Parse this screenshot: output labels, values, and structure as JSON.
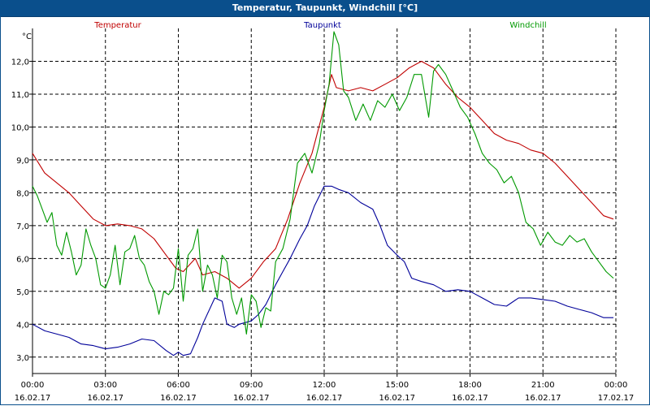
{
  "window": {
    "title": "Temperatur, Taupunkt, Windchill [°C]"
  },
  "chart_data": {
    "type": "line",
    "title": "Temperatur, Taupunkt, Windchill [°C]",
    "ylabel": "°C",
    "xlabel": "",
    "ylim": [
      2.5,
      13.0
    ],
    "xlim": [
      0,
      24
    ],
    "grid": true,
    "y_ticks": [
      "3,0",
      "4,0",
      "5,0",
      "6,0",
      "7,0",
      "8,0",
      "9,0",
      "10,0",
      "11,0",
      "12,0"
    ],
    "x_ticks": [
      {
        "time": "00:00",
        "date": "16.02.17"
      },
      {
        "time": "03:00",
        "date": "16.02.17"
      },
      {
        "time": "06:00",
        "date": "16.02.17"
      },
      {
        "time": "09:00",
        "date": "16.02.17"
      },
      {
        "time": "12:00",
        "date": "16.02.17"
      },
      {
        "time": "15:00",
        "date": "16.02.17"
      },
      {
        "time": "18:00",
        "date": "16.02.17"
      },
      {
        "time": "21:00",
        "date": "16.02.17"
      },
      {
        "time": "00:00",
        "date": "17.02.17"
      }
    ],
    "series": [
      {
        "name": "Temperatur",
        "color": "#c00000",
        "x": [
          0,
          0.5,
          1,
          1.5,
          2,
          2.5,
          3,
          3.5,
          4,
          4.5,
          5,
          5.5,
          5.9,
          6.2,
          6.7,
          7,
          7.5,
          8,
          8.5,
          9,
          9.5,
          10,
          10.5,
          11,
          11.5,
          12,
          12.3,
          12.5,
          13,
          13.5,
          14,
          14.5,
          15,
          15.5,
          16,
          16.5,
          17,
          17.5,
          18,
          18.5,
          19,
          19.5,
          20,
          20.5,
          21,
          21.5,
          22,
          22.5,
          23,
          23.5,
          23.9
        ],
        "values": [
          9.2,
          8.6,
          8.3,
          8.0,
          7.6,
          7.2,
          7.0,
          7.05,
          7.0,
          6.9,
          6.6,
          6.1,
          5.7,
          5.6,
          6.0,
          5.5,
          5.6,
          5.4,
          5.1,
          5.4,
          5.9,
          6.3,
          7.2,
          8.3,
          9.2,
          10.6,
          11.6,
          11.2,
          11.1,
          11.2,
          11.1,
          11.3,
          11.5,
          11.8,
          12.0,
          11.8,
          11.3,
          10.9,
          10.6,
          10.2,
          9.8,
          9.6,
          9.5,
          9.3,
          9.2,
          8.9,
          8.5,
          8.1,
          7.7,
          7.3,
          7.2
        ]
      },
      {
        "name": "Taupunkt",
        "color": "#000099",
        "x": [
          0,
          0.5,
          1,
          1.5,
          2,
          2.5,
          3,
          3.5,
          4,
          4.5,
          5,
          5.5,
          5.8,
          6,
          6.2,
          6.5,
          6.8,
          7,
          7.5,
          7.8,
          8,
          8.3,
          8.5,
          9,
          9.3,
          9.6,
          10,
          10.3,
          10.6,
          11,
          11.3,
          11.6,
          12,
          12.3,
          12.6,
          13,
          13.5,
          14,
          14.3,
          14.6,
          15,
          15.3,
          15.6,
          16,
          16.5,
          17,
          17.5,
          18,
          18.5,
          19,
          19.5,
          20,
          20.5,
          21,
          21.5,
          22,
          22.5,
          23,
          23.5,
          23.9
        ],
        "values": [
          4.0,
          3.8,
          3.7,
          3.6,
          3.4,
          3.35,
          3.25,
          3.3,
          3.4,
          3.55,
          3.5,
          3.2,
          3.05,
          3.15,
          3.05,
          3.1,
          3.6,
          4.0,
          4.8,
          4.7,
          4.0,
          3.9,
          4.0,
          4.1,
          4.3,
          4.6,
          5.2,
          5.6,
          6.0,
          6.6,
          7.0,
          7.6,
          8.2,
          8.2,
          8.1,
          8.0,
          7.7,
          7.5,
          7.0,
          6.4,
          6.1,
          5.9,
          5.4,
          5.3,
          5.2,
          5.0,
          5.05,
          5.0,
          4.8,
          4.6,
          4.55,
          4.8,
          4.8,
          4.75,
          4.7,
          4.55,
          4.45,
          4.35,
          4.2,
          4.2
        ]
      },
      {
        "name": "Windchill",
        "color": "#009900",
        "x": [
          0,
          0.2,
          0.4,
          0.6,
          0.8,
          1,
          1.2,
          1.4,
          1.6,
          1.8,
          2,
          2.2,
          2.4,
          2.6,
          2.8,
          3,
          3.2,
          3.4,
          3.6,
          3.8,
          4,
          4.2,
          4.4,
          4.6,
          4.8,
          5,
          5.2,
          5.4,
          5.6,
          5.8,
          6,
          6.2,
          6.4,
          6.6,
          6.8,
          7,
          7.2,
          7.4,
          7.6,
          7.8,
          8,
          8.2,
          8.4,
          8.6,
          8.8,
          9,
          9.2,
          9.4,
          9.6,
          9.8,
          10,
          10.3,
          10.6,
          10.9,
          11.2,
          11.5,
          11.8,
          12,
          12.2,
          12.4,
          12.6,
          12.8,
          13,
          13.3,
          13.6,
          13.9,
          14.2,
          14.5,
          14.8,
          15.1,
          15.4,
          15.7,
          16,
          16.3,
          16.5,
          16.7,
          17,
          17.3,
          17.6,
          17.9,
          18.2,
          18.5,
          18.8,
          19.1,
          19.4,
          19.7,
          20,
          20.3,
          20.6,
          20.9,
          21.2,
          21.5,
          21.8,
          22.1,
          22.4,
          22.7,
          23,
          23.3,
          23.6,
          23.9
        ],
        "values": [
          8.2,
          7.9,
          7.5,
          7.1,
          7.4,
          6.4,
          6.1,
          6.8,
          6.2,
          5.5,
          5.8,
          6.9,
          6.4,
          6.0,
          5.2,
          5.1,
          5.5,
          6.4,
          5.2,
          6.2,
          6.3,
          6.7,
          6.0,
          5.8,
          5.3,
          5.0,
          4.3,
          5.0,
          4.9,
          5.1,
          6.3,
          4.7,
          6.1,
          6.3,
          6.9,
          5.0,
          5.8,
          5.5,
          4.8,
          6.1,
          5.9,
          4.8,
          4.3,
          4.8,
          3.7,
          4.9,
          4.7,
          3.9,
          4.5,
          4.4,
          5.9,
          6.3,
          7.2,
          8.9,
          9.2,
          8.6,
          9.5,
          10.5,
          11.3,
          12.9,
          12.5,
          11.1,
          10.9,
          10.2,
          10.7,
          10.2,
          10.8,
          10.6,
          11.0,
          10.5,
          10.9,
          11.6,
          11.6,
          10.3,
          11.7,
          11.9,
          11.6,
          11.1,
          10.6,
          10.3,
          9.8,
          9.2,
          8.9,
          8.7,
          8.3,
          8.5,
          8.0,
          7.1,
          6.9,
          6.4,
          6.8,
          6.5,
          6.4,
          6.7,
          6.5,
          6.6,
          6.2,
          5.9,
          5.6,
          5.4
        ]
      }
    ]
  }
}
